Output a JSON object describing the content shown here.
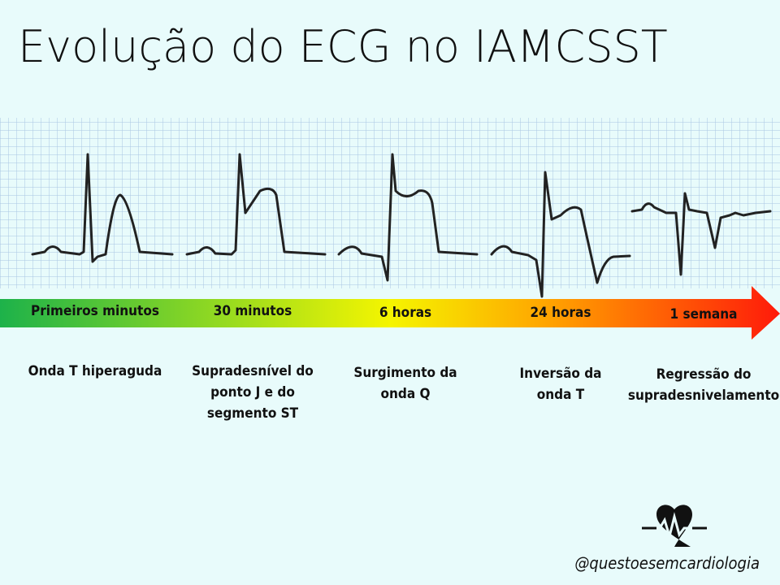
{
  "header": {
    "title": "Evolução do ECG no IAMCSST"
  },
  "stages": [
    {
      "time": "Primeiros minutos",
      "description": [
        "Onda T hiperaguda"
      ]
    },
    {
      "time": "30 minutos",
      "description": [
        "Supradesnível do",
        "ponto J e do",
        "segmento ST"
      ]
    },
    {
      "time": "6 horas",
      "description": [
        "Surgimento da",
        "onda Q"
      ]
    },
    {
      "time": "24 horas",
      "description": [
        "Inversão da",
        "onda T"
      ]
    },
    {
      "time": "1 semana",
      "description": [
        "Regressão do",
        "supradesnivelamento"
      ]
    }
  ],
  "footer": {
    "handle": "@questoesemcardiologia"
  }
}
